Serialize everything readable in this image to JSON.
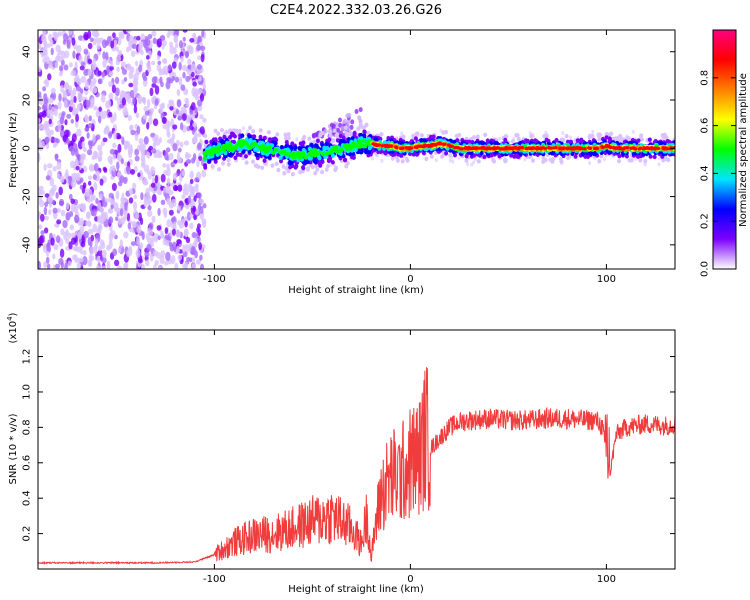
{
  "title": "C2E4.2022.332.03.26.G26",
  "chart_data": [
    {
      "type": "heatmap",
      "xlabel": "Height of straight line (km)",
      "ylabel": "Frequency (Hz)",
      "xlim": [
        -190,
        135
      ],
      "ylim": [
        -50,
        49
      ],
      "xticks": [
        -100,
        0,
        100
      ],
      "xtick_labels": [
        "-100",
        "0",
        "100"
      ],
      "yticks": [
        -40,
        -20,
        0,
        20,
        40
      ],
      "ytick_labels": [
        "-40",
        "-20",
        "0",
        "20",
        "40"
      ],
      "colorbar": {
        "label": "Normalized spectral amplitude",
        "range": [
          0,
          1
        ],
        "ticks": [
          0.0,
          0.2,
          0.4,
          0.6,
          0.8
        ],
        "tick_labels": [
          "0.0",
          "0.2",
          "0.4",
          "0.6",
          "0.8"
        ],
        "colors": [
          "#ffffff",
          "#7c00ff",
          "#0000ff",
          "#00e5ff",
          "#00ff00",
          "#ffff00",
          "#ff7f00",
          "#ff0000",
          "#ff0080"
        ]
      },
      "ridge": {
        "x": [
          -105,
          -100,
          -95,
          -90,
          -85,
          -80,
          -75,
          -70,
          -65,
          -60,
          -55,
          -50,
          -45,
          -40,
          -35,
          -30,
          -25,
          -20,
          -15,
          -10,
          -5,
          0,
          5,
          10,
          15,
          20,
          25,
          30,
          35,
          40,
          45,
          50,
          55,
          60,
          65,
          70,
          75,
          80,
          85,
          90,
          95,
          100,
          105,
          110,
          115,
          120,
          125,
          130,
          135
        ],
        "y": [
          -3,
          -1,
          0,
          1,
          2,
          1,
          0,
          -1,
          -2,
          -3,
          -3,
          -2,
          -2,
          -1,
          0,
          1,
          2,
          2,
          1,
          1,
          0,
          0,
          1,
          1,
          2,
          1,
          0,
          0,
          0,
          0,
          0,
          0,
          0,
          0,
          0,
          0,
          0,
          0,
          0,
          0,
          0,
          1,
          0,
          0,
          0,
          0,
          0,
          0,
          0
        ]
      },
      "blob": {
        "x": [
          -50,
          -25
        ],
        "y": [
          5,
          17
        ]
      }
    },
    {
      "type": "line",
      "xlabel": "Height of straight line (km)",
      "ylabel": "SNR (10 * v/v)",
      "scale_label": "(x10",
      "scale_exp": "4",
      "xlim": [
        -190,
        135
      ],
      "ylim": [
        0,
        13500
      ],
      "xticks": [
        -100,
        0,
        100
      ],
      "xtick_labels": [
        "-100",
        "0",
        "100"
      ],
      "yticks": [
        2000,
        4000,
        6000,
        8000,
        10000,
        12000
      ],
      "ytick_labels": [
        "0.2",
        "0.4",
        "0.6",
        "0.8",
        "1.0",
        "1.2"
      ],
      "color": "#f03c3c",
      "series": [
        {
          "x": [
            -190,
            -170,
            -150,
            -130,
            -110,
            -100,
            -90,
            -80,
            -70,
            -60,
            -50,
            -40,
            -30,
            -25,
            -22,
            -20,
            -18,
            -15,
            -10,
            -5,
            0,
            5,
            8,
            10,
            12,
            15,
            20,
            25,
            30,
            40,
            50,
            60,
            70,
            80,
            90,
            95,
            98,
            100,
            102,
            105,
            110,
            120,
            130,
            135
          ],
          "y": [
            350,
            350,
            350,
            350,
            400,
            800,
            1500,
            1900,
            2000,
            2300,
            2700,
            3000,
            2300,
            1400,
            3200,
            500,
            2400,
            4200,
            5200,
            5300,
            6000,
            6400,
            7800,
            6800,
            7000,
            7400,
            8000,
            8300,
            8400,
            8500,
            8400,
            8400,
            8500,
            8500,
            8400,
            8400,
            8000,
            6500,
            5500,
            7600,
            8000,
            8200,
            8100,
            8200
          ]
        }
      ]
    }
  ]
}
